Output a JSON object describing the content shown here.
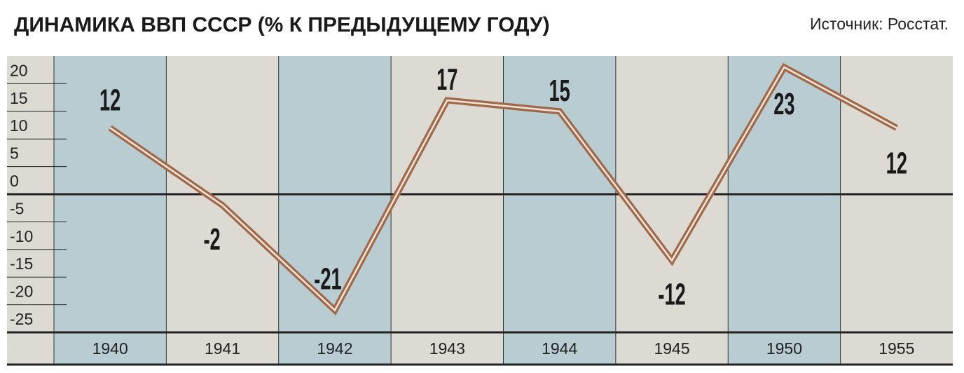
{
  "chart_data": {
    "type": "line",
    "title": "ДИНАМИКА ВВП СССР (% К ПРЕДЫДУЩЕМУ ГОДУ)",
    "source": "Источник: Росстат.",
    "categories": [
      "1940",
      "1941",
      "1942",
      "1943",
      "1944",
      "1945",
      "1950",
      "1955"
    ],
    "values": [
      12,
      -2,
      -21,
      17,
      15,
      -12,
      23,
      12
    ],
    "color": "#a0694a",
    "ylim": [
      -25,
      25
    ],
    "yticks": [
      20,
      15,
      10,
      5,
      0,
      -5,
      -10,
      -15,
      -20,
      -25
    ]
  }
}
